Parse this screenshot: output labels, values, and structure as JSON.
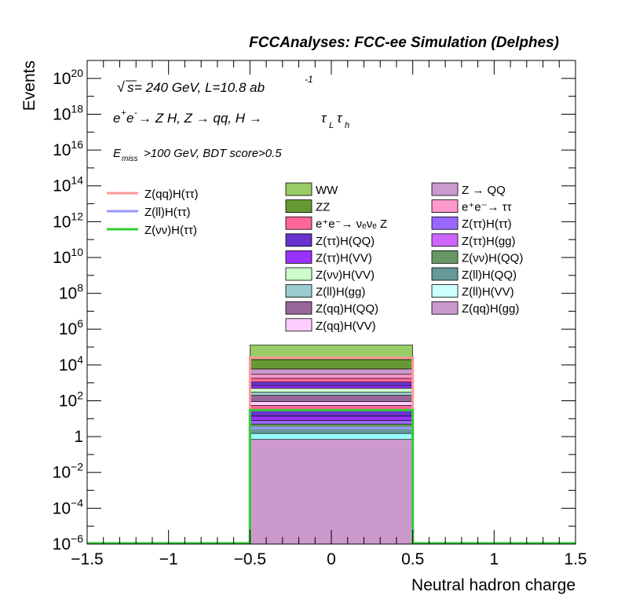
{
  "header": {
    "title": "FCCAnalyses: FCC-ee Simulation (Delphes)"
  },
  "annotations": {
    "line1": {
      "sqrt": "√",
      "s": "s",
      "rest": " = 240 GeV, L=10.8 ab",
      "sup": "-1"
    },
    "line2": {
      "e1": "e",
      "e1sup": "+",
      "e2": "e",
      "e2sup": "-",
      "rest1": " → Z H, Z  → qq, H  → ",
      "tau1": "τ",
      "tau1sub": "L",
      "tau2": "τ",
      "tau2sub": "h"
    },
    "line3": {
      "e": "E",
      "sub": "miss",
      "rest": ">100 GeV, BDT score>0.5"
    }
  },
  "chart_data": {
    "type": "bar",
    "histtype": "stacked-histogram-with-signal-lines",
    "xlabel": "Neutral hadron charge",
    "ylabel": "Events",
    "xlim": [
      -1.5,
      1.5
    ],
    "ylim": [
      1e-06,
      1e+21
    ],
    "yscale": "log",
    "bin_edges": [
      -0.5,
      0.5
    ],
    "x_ticks": [
      "−1.5",
      "−1",
      "−0.5",
      "0",
      "0.5",
      "1",
      "1.5"
    ],
    "x_tick_values": [
      -1.5,
      -1,
      -0.5,
      0,
      0.5,
      1,
      1.5
    ],
    "y_ticks": [
      {
        "value": 1e-06,
        "base": "10",
        "exp": "−6"
      },
      {
        "value": 0.0001,
        "base": "10",
        "exp": "−4"
      },
      {
        "value": 0.01,
        "base": "10",
        "exp": "−2"
      },
      {
        "value": 1,
        "base": "1",
        "exp": ""
      },
      {
        "value": 100,
        "base": "10",
        "exp": "2"
      },
      {
        "value": 10000.0,
        "base": "10",
        "exp": "4"
      },
      {
        "value": 1000000.0,
        "base": "10",
        "exp": "6"
      },
      {
        "value": 100000000.0,
        "base": "10",
        "exp": "8"
      },
      {
        "value": 10000000000.0,
        "base": "10",
        "exp": "10"
      },
      {
        "value": 1000000000000.0,
        "base": "10",
        "exp": "12"
      },
      {
        "value": 100000000000000.0,
        "base": "10",
        "exp": "14"
      },
      {
        "value": 1e+16,
        "base": "10",
        "exp": "16"
      },
      {
        "value": 1e+18,
        "base": "10",
        "exp": "18"
      },
      {
        "value": 1e+20,
        "base": "10",
        "exp": "20"
      }
    ],
    "grid": false,
    "legend_placement": "top",
    "backgrounds_stack_bottom_to_top": [
      {
        "color": "#cc99cc",
        "cum_top": 0.7
      },
      {
        "color": "#99ffff",
        "cum_top": 1.5
      },
      {
        "color": "#669999",
        "cum_top": 3
      },
      {
        "color": "#669966",
        "cum_top": 5
      },
      {
        "color": "#9966ff",
        "cum_top": 8
      },
      {
        "color": "#9933ff",
        "cum_top": 14
      },
      {
        "color": "#6633cc",
        "cum_top": 30
      },
      {
        "color": "#ff6699",
        "cum_top": 55
      },
      {
        "color": "#ffccff",
        "cum_top": 90
      },
      {
        "color": "#996699",
        "cum_top": 200
      },
      {
        "color": "#99cccc",
        "cum_top": 300
      },
      {
        "color": "#ccffcc",
        "cum_top": 500
      },
      {
        "color": "#9933ff",
        "cum_top": 700
      },
      {
        "color": "#6633cc",
        "cum_top": 1100
      },
      {
        "color": "#ff6699",
        "cum_top": 1800
      },
      {
        "color": "#ff99cc",
        "cum_top": 3000
      },
      {
        "color": "#cc99cc",
        "cum_top": 6000
      },
      {
        "color": "#669933",
        "cum_top": 20000
      },
      {
        "color": "#99cc66",
        "cum_top": 130000
      }
    ],
    "signal_lines": [
      {
        "name": "Z(qq)H(ττ)",
        "color": "#ff9999",
        "value": 25000
      },
      {
        "name": "Z(ll)H(ττ)",
        "color": "#9999ff",
        "value": 3
      },
      {
        "name": "Z(νν)H(ττ)",
        "color": "#33cc33",
        "value": 30
      }
    ],
    "legend_background": {
      "col1": [
        {
          "label": "WW",
          "color": "#99cc66"
        },
        {
          "label": "ZZ",
          "color": "#669933"
        },
        {
          "label": "e⁺e⁻→ νₑνₑ Z",
          "color": "#ff6699"
        },
        {
          "label": "Z(ττ)H(QQ)",
          "color": "#6633cc"
        },
        {
          "label": "Z(ττ)H(VV)",
          "color": "#9933ff"
        },
        {
          "label": "Z(νν)H(VV)",
          "color": "#ccffcc"
        },
        {
          "label": "Z(ll)H(gg)",
          "color": "#99cccc"
        },
        {
          "label": "Z(qq)H(QQ)",
          "color": "#996699"
        },
        {
          "label": "Z(qq)H(VV)",
          "color": "#ffccff"
        }
      ],
      "col2": [
        {
          "label": "Z → QQ",
          "color": "#cc99cc"
        },
        {
          "label": "e⁺e⁻→ ττ",
          "color": "#ff99cc"
        },
        {
          "label": "Z(ττ)H(ττ)",
          "color": "#9966ff"
        },
        {
          "label": "Z(ττ)H(gg)",
          "color": "#cc66ff"
        },
        {
          "label": "Z(νν)H(QQ)",
          "color": "#669966"
        },
        {
          "label": "Z(ll)H(QQ)",
          "color": "#669999"
        },
        {
          "label": "Z(ll)H(VV)",
          "color": "#ccffff"
        },
        {
          "label": "Z(qq)H(gg)",
          "color": "#cc99cc"
        }
      ]
    }
  }
}
